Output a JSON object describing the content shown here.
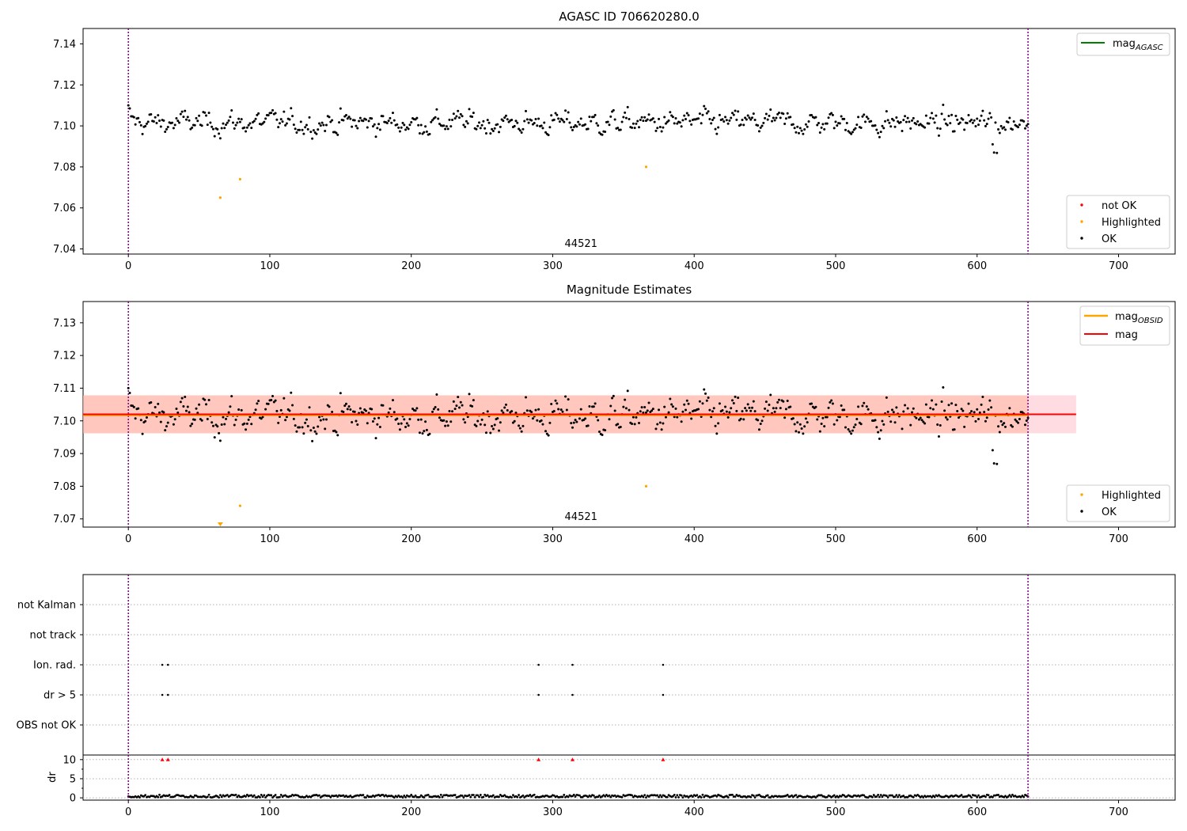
{
  "chart_data": [
    {
      "type": "scatter",
      "title": "AGASC ID 706620280.0",
      "xlim": [
        -32,
        740
      ],
      "ylim": [
        7.0375,
        7.1475
      ],
      "xticks": [
        0,
        100,
        200,
        300,
        400,
        500,
        600,
        700
      ],
      "yticks": [
        7.04,
        7.06,
        7.08,
        7.1,
        7.12,
        7.14
      ],
      "ytick_labels": [
        "7.04",
        "7.06",
        "7.08",
        "7.10",
        "7.12",
        "7.14"
      ],
      "obsid_label": "44521",
      "obsid_label_x": 320,
      "vlines": [
        0,
        636
      ],
      "series": [
        {
          "name": "not OK",
          "color": "#ff0000",
          "points": []
        },
        {
          "name": "Highlighted",
          "color": "#ffa500",
          "points": [
            [
              65,
              7.065
            ],
            [
              79,
              7.074
            ],
            [
              366,
              7.08
            ]
          ]
        },
        {
          "name": "OK",
          "color": "#000000",
          "generated": true,
          "mean": 7.1015,
          "range": [
            0,
            636
          ]
        }
      ],
      "lines": [
        {
          "name": "mag",
          "sub": "AGASC",
          "color": "#008000"
        }
      ],
      "legend_points_order": [
        "not OK",
        "Highlighted",
        "OK"
      ]
    },
    {
      "type": "scatter",
      "title": "Magnitude Estimates",
      "xlim": [
        -32,
        740
      ],
      "ylim": [
        7.0675,
        7.1365
      ],
      "xticks": [
        0,
        100,
        200,
        300,
        400,
        500,
        600,
        700
      ],
      "yticks": [
        7.07,
        7.08,
        7.09,
        7.1,
        7.11,
        7.12,
        7.13
      ],
      "ytick_labels": [
        "7.07",
        "7.08",
        "7.09",
        "7.10",
        "7.11",
        "7.12",
        "7.13"
      ],
      "obsid_label": "44521",
      "obsid_label_x": 320,
      "vlines": [
        0,
        636
      ],
      "band": {
        "x": [
          -32,
          670
        ],
        "y": [
          7.0962,
          7.1078
        ],
        "color": "#ffc0cb",
        "inner_color": "#ffa07a",
        "inner_x": [
          -32,
          636
        ]
      },
      "mag_line": {
        "value": 7.102,
        "x": [
          -32,
          670
        ],
        "color": "#ff0000"
      },
      "mag_obsid_line": {
        "value": 7.1017,
        "x": [
          -32,
          636
        ],
        "color": "#ffa500"
      },
      "series": [
        {
          "name": "Highlighted",
          "color": "#ffa500",
          "points": [
            [
              79,
              7.074
            ],
            [
              366,
              7.08
            ]
          ],
          "off_axis_markers": [
            65
          ]
        },
        {
          "name": "OK",
          "color": "#000000",
          "generated": true,
          "mean": 7.1015,
          "range": [
            0,
            636
          ]
        }
      ],
      "lines": [
        {
          "name": "mag",
          "sub": "OBSID",
          "color": "#ffa500"
        },
        {
          "name": "mag",
          "sub": "",
          "color": "#ff0000"
        }
      ],
      "legend_points_order": [
        "Highlighted",
        "OK"
      ]
    },
    {
      "type": "scatter",
      "title": "",
      "xlim": [
        -32,
        740
      ],
      "categories": [
        "not Kalman",
        "not track",
        "Ion. rad.",
        "dr > 5",
        "OBS not OK"
      ],
      "flags": {
        "not Kalman": [],
        "not track": [],
        "Ion. rad.": [
          24,
          28,
          290,
          314,
          378
        ],
        "dr > 5": [
          24,
          28,
          290,
          314,
          378
        ],
        "OBS not OK": []
      },
      "vlines": [
        0,
        636
      ]
    },
    {
      "type": "scatter",
      "title": "",
      "ylabel": "dr",
      "xlim": [
        -32,
        740
      ],
      "ylim": [
        -0.6,
        11.2
      ],
      "xticks": [
        0,
        100,
        200,
        300,
        400,
        500,
        600,
        700
      ],
      "yticks": [
        0,
        5,
        10
      ],
      "ytick_labels": [
        "0",
        "5",
        "10"
      ],
      "clipped_markers": {
        "x": [
          24,
          28,
          290,
          314,
          378
        ],
        "y": 10,
        "color": "#ff0000"
      },
      "series": [
        {
          "name": "dr",
          "color": "#000000",
          "generated": true,
          "typical": [
            0.1,
            0.8
          ],
          "range": [
            0,
            636
          ]
        }
      ],
      "vlines": [
        0,
        636
      ]
    }
  ]
}
